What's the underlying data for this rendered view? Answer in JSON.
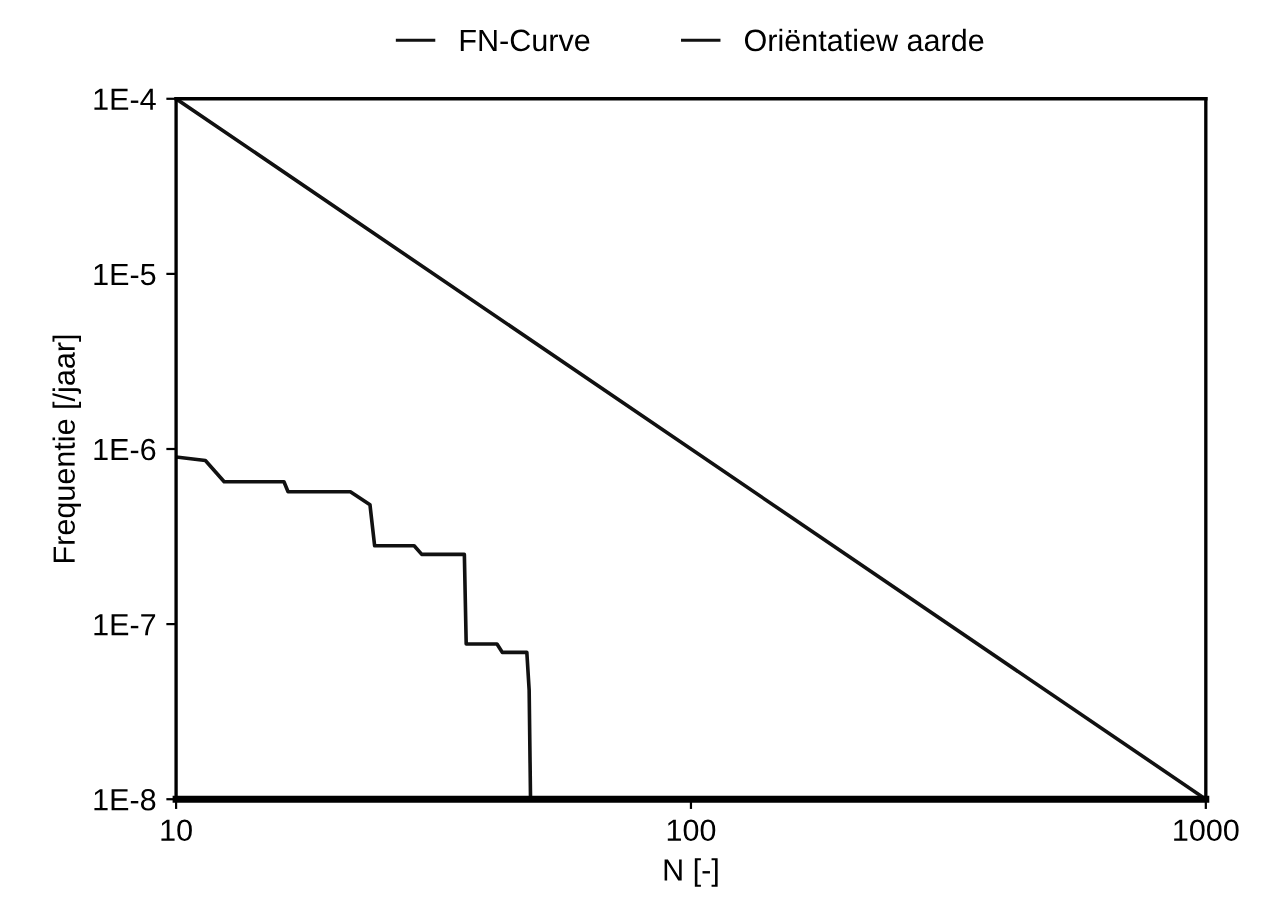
{
  "chart_data": {
    "type": "line",
    "xlabel": "N [-]",
    "ylabel": "Frequentie [/jaar]",
    "log": "xy",
    "legend": "top",
    "grid": false,
    "marker": "none",
    "line_style": "solid",
    "xlim": [
      10,
      1000
    ],
    "xticks": [
      10,
      100,
      1000
    ],
    "ylim": [
      1e-08,
      0.0001
    ],
    "yticks": [
      {
        "value": 1e-08,
        "label": "1E-8"
      },
      {
        "value": 1e-07,
        "label": "1E-7"
      },
      {
        "value": 1e-06,
        "label": "1E-6"
      },
      {
        "value": 1e-05,
        "label": "1E-5"
      },
      {
        "value": 0.0001,
        "label": "1E-4"
      }
    ],
    "series": [
      {
        "name": "FN-Curve",
        "color": "#111111",
        "x": [
          10,
          11.4,
          12.4,
          16.2,
          16.5,
          21.8,
          23.8,
          24.3,
          29,
          30,
          36.3,
          36.6,
          42,
          43,
          48,
          48.5,
          48.8
        ],
        "values": [
          9e-07,
          8.6e-07,
          6.5e-07,
          6.5e-07,
          5.7e-07,
          5.7e-07,
          4.8e-07,
          2.8e-07,
          2.8e-07,
          2.5e-07,
          2.5e-07,
          7.7e-08,
          7.7e-08,
          6.9e-08,
          6.9e-08,
          4.2e-08,
          1e-08
        ]
      },
      {
        "name": "Oriëntatiew aarde",
        "color": "#111111",
        "x": [
          10,
          1000
        ],
        "values": [
          0.0001,
          1e-08
        ]
      }
    ]
  }
}
